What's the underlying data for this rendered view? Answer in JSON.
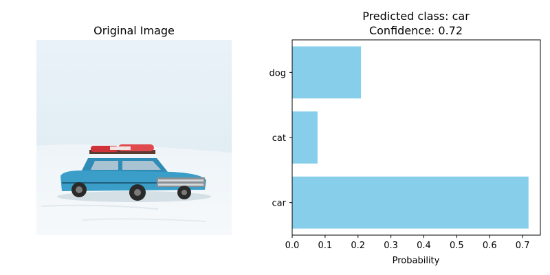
{
  "left_panel": {
    "title": "Original Image"
  },
  "chart_data": {
    "type": "bar",
    "orientation": "horizontal",
    "title": "Predicted class: car",
    "subtitle": "Confidence: 0.72",
    "xlabel": "Probability",
    "ylabel": "",
    "categories": [
      "car",
      "cat",
      "dog"
    ],
    "values": [
      0.718,
      0.077,
      0.209
    ],
    "xlim": [
      0,
      0.754
    ],
    "xticks": [
      0.0,
      0.1,
      0.2,
      0.3,
      0.4,
      0.5,
      0.6,
      0.7
    ],
    "xtick_labels": [
      "0.0",
      "0.1",
      "0.2",
      "0.3",
      "0.4",
      "0.5",
      "0.6",
      "0.7"
    ],
    "bar_color": "#87ceeb",
    "grid": false,
    "legend": "none"
  },
  "colors": {
    "sky": "#e6f0f6",
    "snow": "#f2f6f9",
    "car_body": "#3a9ec8",
    "car_dark": "#1f5f80",
    "cargo": "#d0323a"
  }
}
